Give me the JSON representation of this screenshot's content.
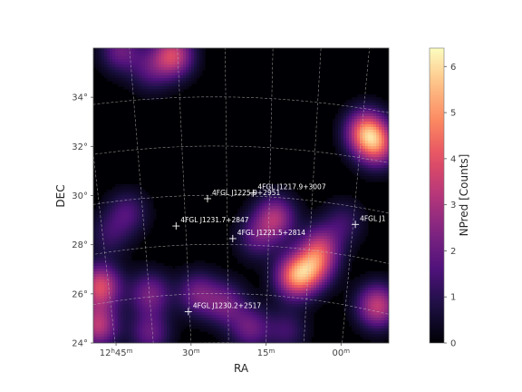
{
  "chart_data": {
    "type": "heatmap",
    "xlabel": "RA",
    "ylabel": "DEC",
    "colorbar_label": "NPred [Counts]",
    "colormap": "magma",
    "vmin": 0,
    "vmax": 6.4,
    "ra_range_deg": [
      191.5,
      178.5
    ],
    "dec_range_deg": [
      24,
      36
    ],
    "x_tick_labels": [
      "12h45m",
      "30m",
      "15m",
      "00m"
    ],
    "x_tick_ra_deg": [
      191.25,
      187.5,
      183.75,
      180.0
    ],
    "y_tick_labels": [
      "24°",
      "26°",
      "28°",
      "30°",
      "32°",
      "34°"
    ],
    "y_tick_dec_deg": [
      24,
      26,
      28,
      30,
      32,
      34
    ],
    "colorbar_ticks": [
      0,
      1,
      2,
      3,
      4,
      5,
      6
    ],
    "grid": true,
    "sources": [
      {
        "name": "4FGL J1225.9+2951",
        "ra": 186.48,
        "dec": 29.86
      },
      {
        "name": "4FGL J1217.9+3007",
        "ra": 184.47,
        "dec": 30.12
      },
      {
        "name": "4FGL J1231.7+2847",
        "ra": 187.93,
        "dec": 28.79
      },
      {
        "name": "4FGL J1221.5+2814",
        "ra": 185.38,
        "dec": 28.24
      },
      {
        "name": "4FGL J1230.2+2517",
        "ra": 187.56,
        "dec": 25.29
      },
      {
        "name": "4FGL J1",
        "ra": 179.9,
        "dec": 29.3
      }
    ],
    "blobs": [
      {
        "ra": 188.0,
        "dec": 35.7,
        "amp": 3.6
      },
      {
        "ra": 190.3,
        "dec": 35.9,
        "amp": 2.0
      },
      {
        "ra": 189.0,
        "dec": 35.1,
        "amp": 1.4
      },
      {
        "ra": 179.5,
        "dec": 32.6,
        "amp": 4.2
      },
      {
        "ra": 179.0,
        "dec": 32.0,
        "amp": 3.2
      },
      {
        "ra": 183.5,
        "dec": 29.1,
        "amp": 2.9
      },
      {
        "ra": 184.3,
        "dec": 28.3,
        "amp": 1.6
      },
      {
        "ra": 180.5,
        "dec": 28.9,
        "amp": 1.2
      },
      {
        "ra": 182.6,
        "dec": 26.7,
        "amp": 4.3
      },
      {
        "ra": 181.8,
        "dec": 27.1,
        "amp": 3.0
      },
      {
        "ra": 181.5,
        "dec": 27.9,
        "amp": 2.6
      },
      {
        "ra": 179.0,
        "dec": 25.5,
        "amp": 3.4
      },
      {
        "ra": 191.2,
        "dec": 26.3,
        "amp": 3.8
      },
      {
        "ra": 191.3,
        "dec": 24.7,
        "amp": 3.2
      },
      {
        "ra": 189.0,
        "dec": 26.0,
        "amp": 2.2
      },
      {
        "ra": 186.9,
        "dec": 26.0,
        "amp": 2.1
      },
      {
        "ra": 185.7,
        "dec": 25.6,
        "amp": 2.0
      },
      {
        "ra": 184.6,
        "dec": 24.6,
        "amp": 2.0
      },
      {
        "ra": 189.0,
        "dec": 24.4,
        "amp": 1.9
      },
      {
        "ra": 190.0,
        "dec": 29.3,
        "amp": 1.5
      },
      {
        "ra": 183.0,
        "dec": 24.5,
        "amp": 1.3
      },
      {
        "ra": 190.8,
        "dec": 28.4,
        "amp": 1.1
      }
    ]
  }
}
